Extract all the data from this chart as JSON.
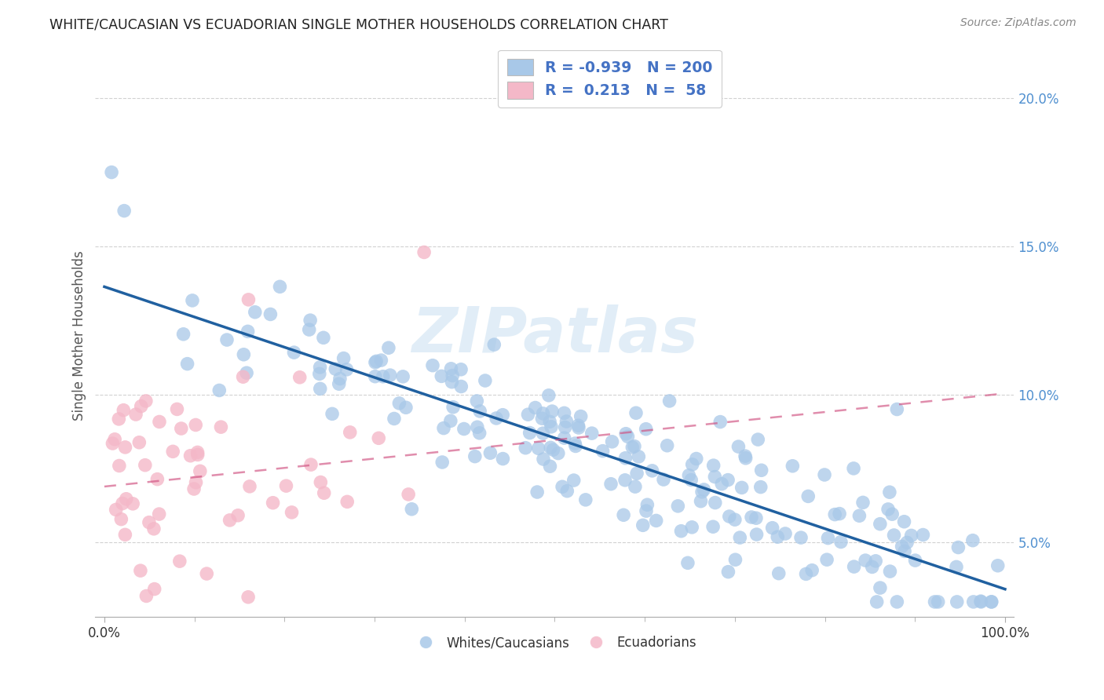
{
  "title": "WHITE/CAUCASIAN VS ECUADORIAN SINGLE MOTHER HOUSEHOLDS CORRELATION CHART",
  "source": "Source: ZipAtlas.com",
  "ylabel": "Single Mother Households",
  "blue_color": "#a8c8e8",
  "pink_color": "#f4b8c8",
  "blue_line_color": "#2060a0",
  "pink_line_color": "#d05080",
  "blue_legend_color": "#4472c4",
  "watermark_color": "#cce0f0",
  "background_color": "#ffffff",
  "grid_color": "#cccccc",
  "blue_r": -0.939,
  "blue_n": 200,
  "pink_r": 0.213,
  "pink_n": 58,
  "blue_seed": 42,
  "pink_seed": 99,
  "ytick_color": "#5090d0",
  "xtick_left_label": "0.0%",
  "xtick_right_label": "100.0%"
}
